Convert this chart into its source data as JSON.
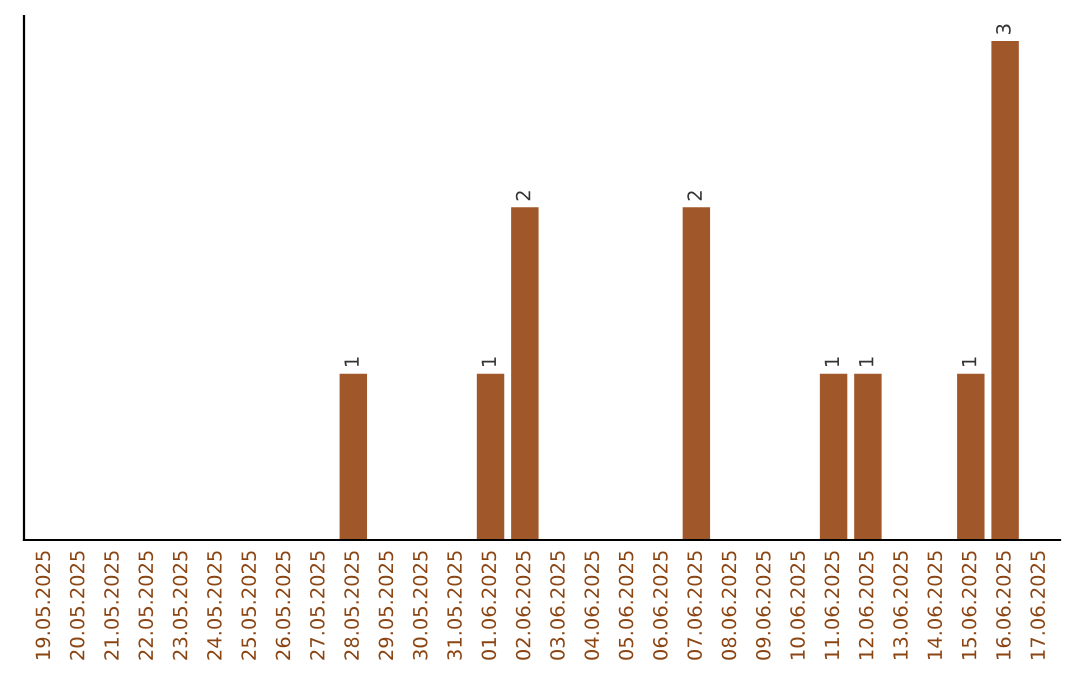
{
  "chart_data": {
    "type": "bar",
    "categories": [
      "19.05.2025",
      "20.05.2025",
      "21.05.2025",
      "22.05.2025",
      "23.05.2025",
      "24.05.2025",
      "25.05.2025",
      "26.05.2025",
      "27.05.2025",
      "28.05.2025",
      "29.05.2025",
      "30.05.2025",
      "31.05.2025",
      "01.06.2025",
      "02.06.2025",
      "03.06.2025",
      "04.06.2025",
      "05.06.2025",
      "06.06.2025",
      "07.06.2025",
      "08.06.2025",
      "09.06.2025",
      "10.06.2025",
      "11.06.2025",
      "12.06.2025",
      "13.06.2025",
      "14.06.2025",
      "15.06.2025",
      "16.06.2025",
      "17.06.2025"
    ],
    "values": [
      0,
      0,
      0,
      0,
      0,
      0,
      0,
      0,
      0,
      1,
      0,
      0,
      0,
      1,
      2,
      0,
      0,
      0,
      0,
      2,
      0,
      0,
      0,
      1,
      1,
      0,
      0,
      1,
      3,
      0
    ],
    "value_labels": [
      null,
      null,
      null,
      null,
      null,
      null,
      null,
      null,
      null,
      "1",
      null,
      null,
      null,
      "1",
      "2",
      null,
      null,
      null,
      null,
      "2",
      null,
      null,
      null,
      "1",
      "1",
      null,
      null,
      "1",
      "3",
      null
    ],
    "color": "#a0572a",
    "tick_labels": "x",
    "grid": false,
    "legend": false
  }
}
